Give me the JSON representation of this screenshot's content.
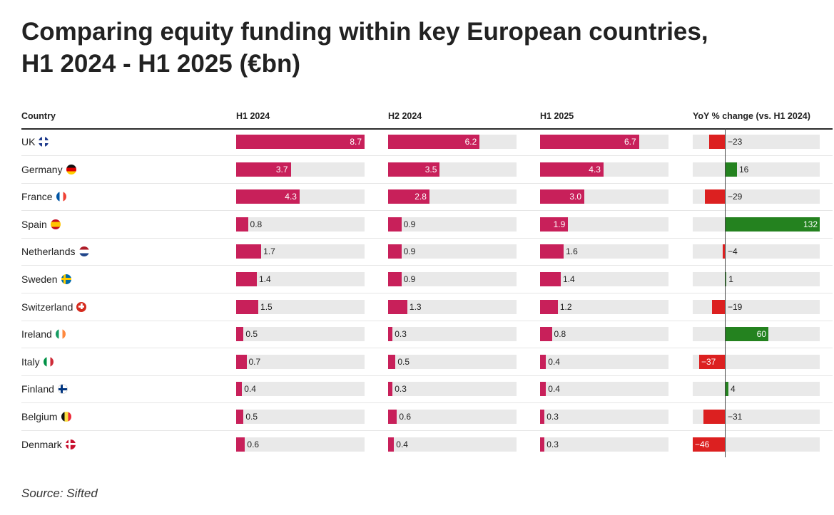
{
  "title": {
    "line1": "Comparing equity funding within key European countries,",
    "line2": "H1 2024 - H1 2025 (€bn)"
  },
  "headers": {
    "country": "Country",
    "h1_2024": "H1 2024",
    "h2_2024": "H2 2024",
    "h1_2025": "H1 2025",
    "yoy": "YoY % change (vs. H1 2024)"
  },
  "source": "Source: Sifted",
  "colors": {
    "bar": "#c8205a",
    "track": "#e9e9e9",
    "positive": "#24821f",
    "negative": "#dc2020"
  },
  "chart_data": {
    "type": "table",
    "title": "Comparing equity funding within key European countries, H1 2024 - H1 2025 (€bn)",
    "value_columns": [
      "H1 2024",
      "H2 2024",
      "H1 2025"
    ],
    "value_scale_max": 8.7,
    "yoy_axis_range": [
      -46,
      132
    ],
    "rows": [
      {
        "country": "UK",
        "flag": "uk-flag",
        "h1_2024": 8.7,
        "h2_2024": 6.2,
        "h1_2025": 6.7,
        "yoy": -23
      },
      {
        "country": "Germany",
        "flag": "germany-flag",
        "h1_2024": 3.7,
        "h2_2024": 3.5,
        "h1_2025": 4.3,
        "yoy": 16
      },
      {
        "country": "France",
        "flag": "france-flag",
        "h1_2024": 4.3,
        "h2_2024": 2.8,
        "h1_2025": 3.0,
        "yoy": -29
      },
      {
        "country": "Spain",
        "flag": "spain-flag",
        "h1_2024": 0.8,
        "h2_2024": 0.9,
        "h1_2025": 1.9,
        "yoy": 132
      },
      {
        "country": "Netherlands",
        "flag": "netherlands-flag",
        "h1_2024": 1.7,
        "h2_2024": 0.9,
        "h1_2025": 1.6,
        "yoy": -4
      },
      {
        "country": "Sweden",
        "flag": "sweden-flag",
        "h1_2024": 1.4,
        "h2_2024": 0.9,
        "h1_2025": 1.4,
        "yoy": 1
      },
      {
        "country": "Switzerland",
        "flag": "switzerland-flag",
        "h1_2024": 1.5,
        "h2_2024": 1.3,
        "h1_2025": 1.2,
        "yoy": -19
      },
      {
        "country": "Ireland",
        "flag": "ireland-flag",
        "h1_2024": 0.5,
        "h2_2024": 0.3,
        "h1_2025": 0.8,
        "yoy": 60
      },
      {
        "country": "Italy",
        "flag": "italy-flag",
        "h1_2024": 0.7,
        "h2_2024": 0.5,
        "h1_2025": 0.4,
        "yoy": -37
      },
      {
        "country": "Finland",
        "flag": "finland-flag",
        "h1_2024": 0.4,
        "h2_2024": 0.3,
        "h1_2025": 0.4,
        "yoy": 4
      },
      {
        "country": "Belgium",
        "flag": "belgium-flag",
        "h1_2024": 0.5,
        "h2_2024": 0.6,
        "h1_2025": 0.3,
        "yoy": -31
      },
      {
        "country": "Denmark",
        "flag": "denmark-flag",
        "h1_2024": 0.6,
        "h2_2024": 0.4,
        "h1_2025": 0.3,
        "yoy": -46
      }
    ]
  }
}
